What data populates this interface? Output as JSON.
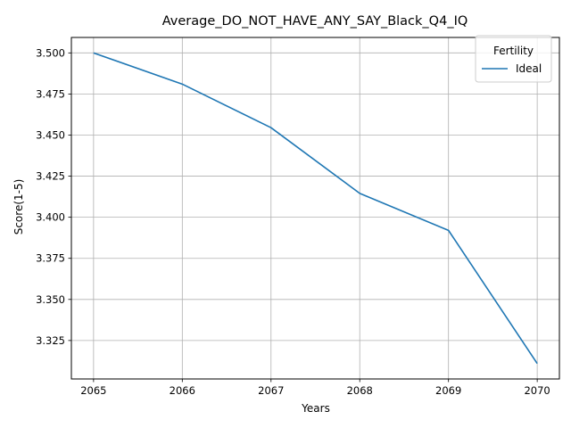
{
  "chart_data": {
    "type": "line",
    "title": "Average_DO_NOT_HAVE_ANY_SAY_Black_Q4_IQ",
    "xlabel": "Years",
    "ylabel": "Score(1-5)",
    "x": [
      2065,
      2066,
      2067,
      2068,
      2069,
      2070
    ],
    "x_tick_labels": [
      "2065",
      "2066",
      "2067",
      "2068",
      "2069",
      "2070"
    ],
    "y_ticks": [
      3.325,
      3.35,
      3.375,
      3.4,
      3.425,
      3.45,
      3.475,
      3.5
    ],
    "y_tick_labels": [
      "3.325",
      "3.350",
      "3.375",
      "3.400",
      "3.425",
      "3.450",
      "3.475",
      "3.500"
    ],
    "xlim": [
      2064.75,
      2070.25
    ],
    "ylim": [
      3.3016,
      3.5094
    ],
    "grid": true,
    "legend": {
      "title": "Fertility",
      "placement": "top-right"
    },
    "series": [
      {
        "name": "Ideal",
        "color": "#1f77b4",
        "values": [
          3.5,
          3.481,
          3.4545,
          3.4145,
          3.392,
          3.311
        ]
      }
    ]
  }
}
